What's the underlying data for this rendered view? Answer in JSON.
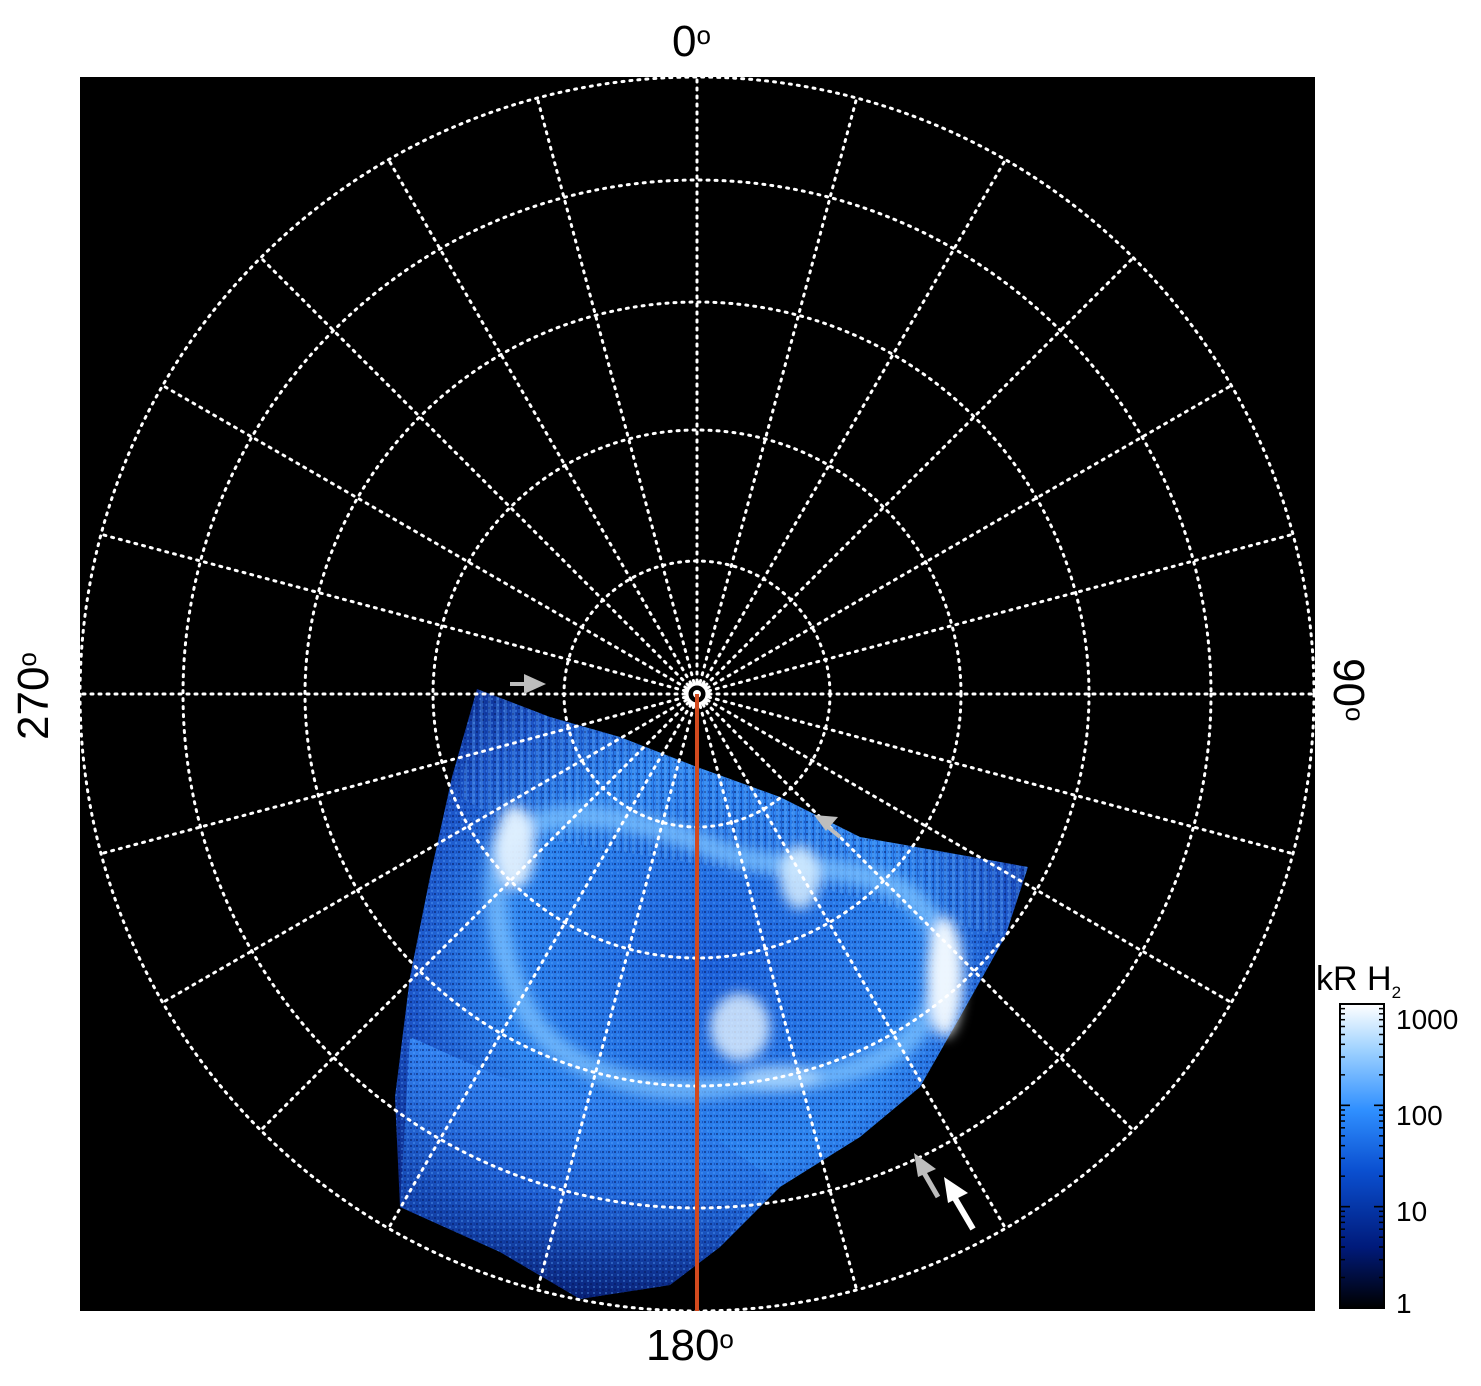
{
  "polar_labels": {
    "top": "0",
    "right": "90",
    "bottom": "180",
    "left": "270",
    "degree_symbol": "o"
  },
  "colorbar": {
    "title": "kR H",
    "title_subscript": "2",
    "ticks": [
      "1000",
      "100",
      "10",
      "1"
    ],
    "scale": "log",
    "range": [
      1,
      1000
    ],
    "colors": [
      "#000000",
      "#001a7a",
      "#0a4fd0",
      "#2f8fff",
      "#9fd2ff",
      "#ffffff"
    ]
  },
  "colors": {
    "background": "#000000",
    "grid": "#ffffff",
    "meridian_line": "#d24a1e",
    "arrow_white": "#ffffff",
    "arrow_gray": "#bdbdbd"
  },
  "image_content": "UV auroral emission (blue) in polar projection"
}
